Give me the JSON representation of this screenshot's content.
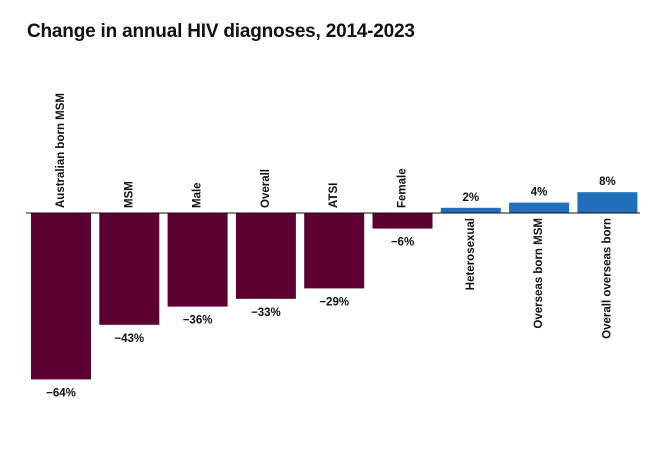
{
  "chart_data": {
    "type": "bar",
    "title": "Change in annual HIV diagnoses, 2014-2023",
    "xlabel": "",
    "ylabel": "",
    "unit": "%",
    "categories": [
      "Australian born MSM",
      "MSM",
      "Male",
      "Overall",
      "ATSI",
      "Female",
      "Heterosexual",
      "Overseas born MSM",
      "Overall overseas born"
    ],
    "values": [
      -64,
      -43,
      -36,
      -33,
      -29,
      -6,
      2,
      4,
      8
    ],
    "value_labels": [
      "−64%",
      "−43%",
      "−36%",
      "−33%",
      "−29%",
      "−6%",
      "2%",
      "4%",
      "8%"
    ],
    "ylim": [
      -64,
      8
    ],
    "grid": false,
    "legend": "none",
    "colors": {
      "negative": "#5c0031",
      "positive": "#1f6fba",
      "baseline": "#111111"
    }
  }
}
